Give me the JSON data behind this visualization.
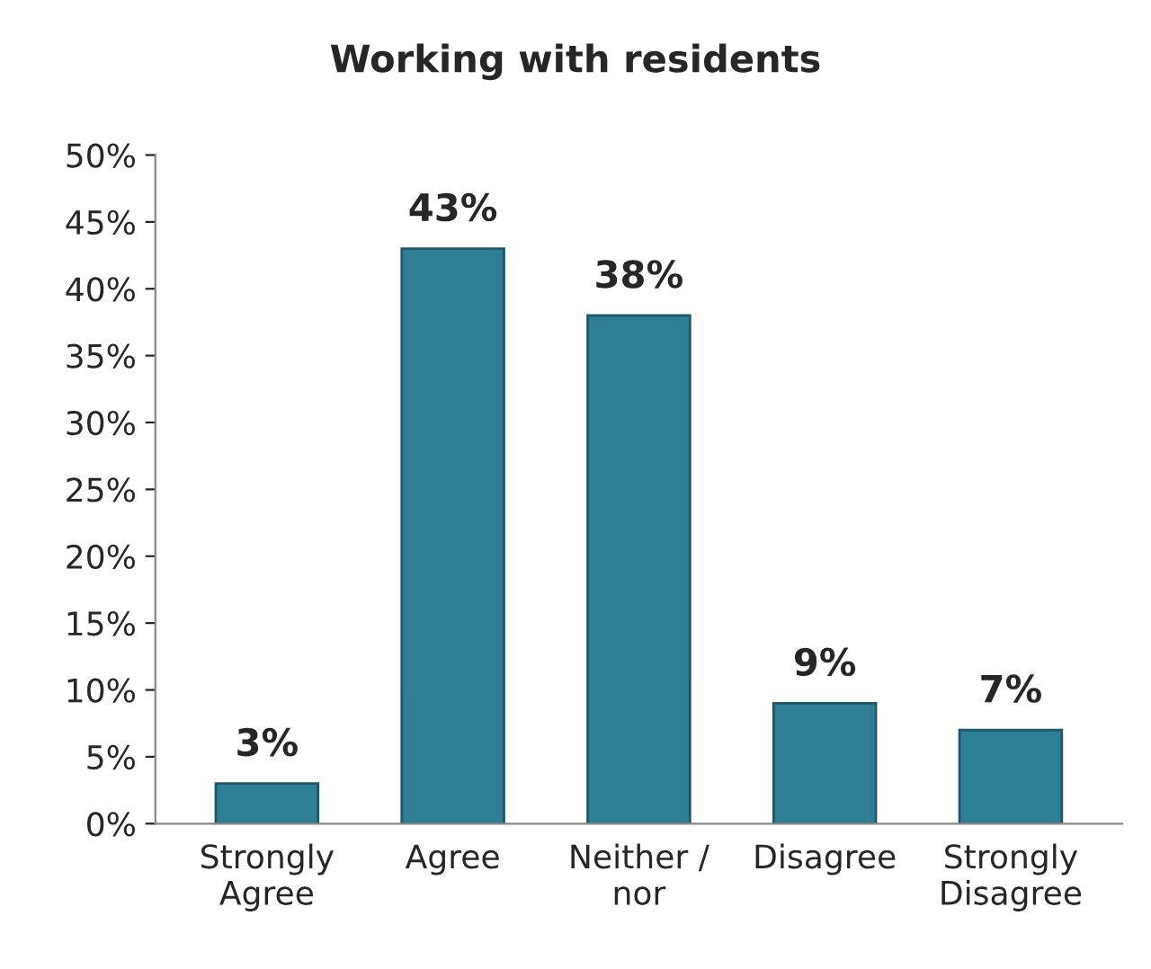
{
  "chart_data": {
    "type": "bar",
    "title": "Working with residents",
    "categories": [
      "Strongly\nAgree",
      "Agree",
      "Neither /\nnor",
      "Disagree",
      "Strongly\nDisagree"
    ],
    "values": [
      3,
      43,
      38,
      9,
      7
    ],
    "value_labels": [
      "3%",
      "43%",
      "38%",
      "9%",
      "7%"
    ],
    "color": "#2e7f96",
    "ylim": [
      0,
      50
    ],
    "yticks": [
      {
        "value": 0,
        "label": "0%"
      },
      {
        "value": 5,
        "label": "5%"
      },
      {
        "value": 10,
        "label": "10%"
      },
      {
        "value": 15,
        "label": "15%"
      },
      {
        "value": 20,
        "label": "20%"
      },
      {
        "value": 25,
        "label": "25%"
      },
      {
        "value": 30,
        "label": "30%"
      },
      {
        "value": 35,
        "label": "35%"
      },
      {
        "value": 40,
        "label": "40%"
      },
      {
        "value": 45,
        "label": "45%"
      },
      {
        "value": 50,
        "label": "50%"
      }
    ],
    "grid": false,
    "legend": false
  }
}
